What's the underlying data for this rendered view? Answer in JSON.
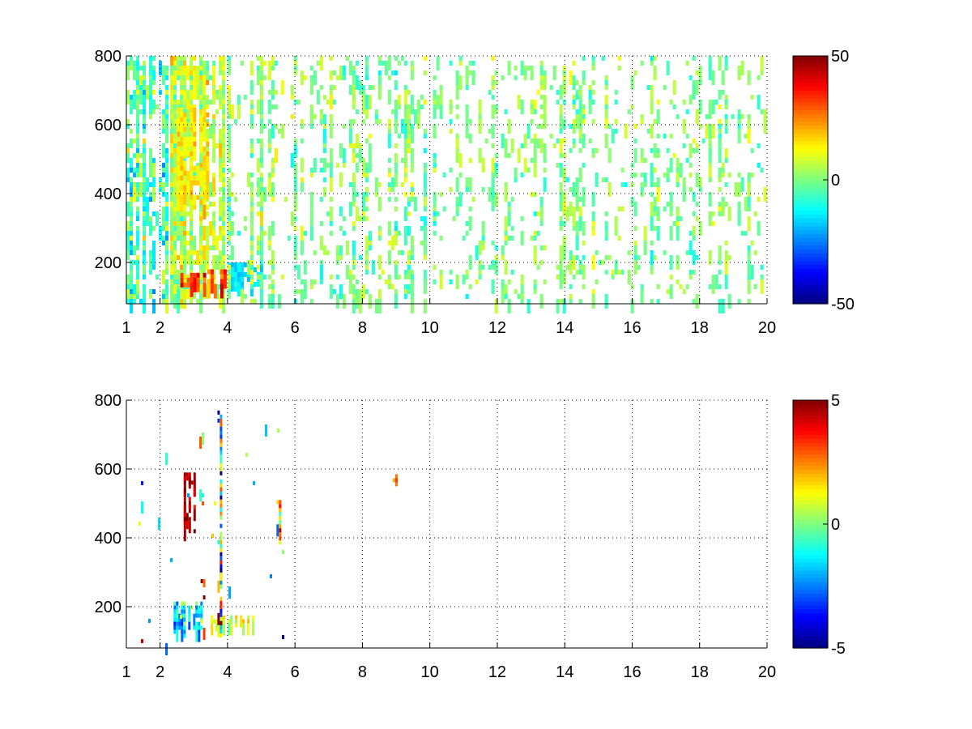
{
  "chart_data": [
    {
      "type": "heatmap",
      "title": "",
      "xlabel": "",
      "ylabel": "",
      "xlim": [
        1,
        20
      ],
      "ylim": [
        80,
        800
      ],
      "x_ticks": [
        "1",
        "2",
        "4",
        "6",
        "8",
        "10",
        "12",
        "14",
        "16",
        "18",
        "20"
      ],
      "x_tick_values": [
        1,
        2,
        4,
        6,
        8,
        10,
        12,
        14,
        16,
        18,
        20
      ],
      "y_ticks": [
        "200",
        "400",
        "600",
        "800"
      ],
      "y_tick_values": [
        200,
        400,
        600,
        800
      ],
      "grid": true,
      "colormap": "jet",
      "colorbar": {
        "min": -50,
        "max": 50,
        "tick_labels": [
          "50",
          "0",
          "-50"
        ],
        "tick_values": [
          50,
          0,
          -50
        ]
      },
      "regions": [
        {
          "x": [
            1,
            2.3
          ],
          "y": [
            80,
            800
          ],
          "density": 0.35,
          "value_mean": -5,
          "value_spread": 12
        },
        {
          "x": [
            2.3,
            4.0
          ],
          "y": [
            80,
            800
          ],
          "density": 0.55,
          "value_mean": 6,
          "value_spread": 10
        },
        {
          "x": [
            2.5,
            3.5
          ],
          "y": [
            350,
            650
          ],
          "density": 0.75,
          "value_mean": 14,
          "value_spread": 6
        },
        {
          "x": [
            2.6,
            3.4
          ],
          "y": [
            120,
            170
          ],
          "density": 0.95,
          "value_mean": 35,
          "value_spread": 10
        },
        {
          "x": [
            3.4,
            4.0
          ],
          "y": [
            120,
            180
          ],
          "density": 0.9,
          "value_mean": 28,
          "value_spread": 12
        },
        {
          "x": [
            4.0,
            5.2
          ],
          "y": [
            120,
            200
          ],
          "density": 0.7,
          "value_mean": -14,
          "value_spread": 6
        },
        {
          "x": [
            4.0,
            5.2
          ],
          "y": [
            80,
            800
          ],
          "density": 0.28,
          "value_mean": 2,
          "value_spread": 8
        },
        {
          "x": [
            5.2,
            10
          ],
          "y": [
            80,
            800
          ],
          "density": 0.18,
          "value_mean": 0,
          "value_spread": 9
        },
        {
          "x": [
            10,
            20
          ],
          "y": [
            80,
            800
          ],
          "density": 0.14,
          "value_mean": 0,
          "value_spread": 8
        }
      ]
    },
    {
      "type": "heatmap",
      "title": "",
      "xlabel": "",
      "ylabel": "",
      "xlim": [
        1,
        20
      ],
      "ylim": [
        80,
        800
      ],
      "x_ticks": [
        "1",
        "2",
        "4",
        "6",
        "8",
        "10",
        "12",
        "14",
        "16",
        "18",
        "20"
      ],
      "x_tick_values": [
        1,
        2,
        4,
        6,
        8,
        10,
        12,
        14,
        16,
        18,
        20
      ],
      "y_ticks": [
        "200",
        "400",
        "600",
        "800"
      ],
      "y_tick_values": [
        200,
        400,
        600,
        800
      ],
      "grid": true,
      "colormap": "jet",
      "colorbar": {
        "min": -5,
        "max": 5,
        "tick_labels": [
          "5",
          "0",
          "-5"
        ],
        "tick_values": [
          5,
          0,
          -5
        ]
      },
      "regions": [
        {
          "x": [
            2.4,
            3.3
          ],
          "y": [
            120,
            215
          ],
          "density": 0.6,
          "value_mean": -1.8,
          "value_spread": 1.6
        },
        {
          "x": [
            3.5,
            4.8
          ],
          "y": [
            135,
            175
          ],
          "density": 0.55,
          "value_mean": 0.8,
          "value_spread": 1.0
        },
        {
          "x": [
            2.7,
            3.1
          ],
          "y": [
            410,
            590
          ],
          "density": 0.55,
          "value_mean": 4.5,
          "value_spread": 0.6
        },
        {
          "x": [
            3.7,
            3.85
          ],
          "y": [
            100,
            770
          ],
          "density": 0.35,
          "value_mean": 0,
          "value_spread": 4.5
        },
        {
          "x": [
            3.2,
            3.35
          ],
          "y": [
            120,
            280
          ],
          "density": 0.3,
          "value_mean": 3,
          "value_spread": 2.5
        },
        {
          "x": [
            5.45,
            5.6
          ],
          "y": [
            380,
            510
          ],
          "density": 0.7,
          "value_mean": 1,
          "value_spread": 3.5
        },
        {
          "x": [
            8.9,
            9.1
          ],
          "y": [
            555,
            585
          ],
          "density": 0.9,
          "value_mean": 2.5,
          "value_spread": 0.5
        },
        {
          "x": [
            1,
            6.3
          ],
          "y": [
            80,
            800
          ],
          "density": 0.004,
          "value_mean": 0,
          "value_spread": 4
        }
      ]
    }
  ]
}
